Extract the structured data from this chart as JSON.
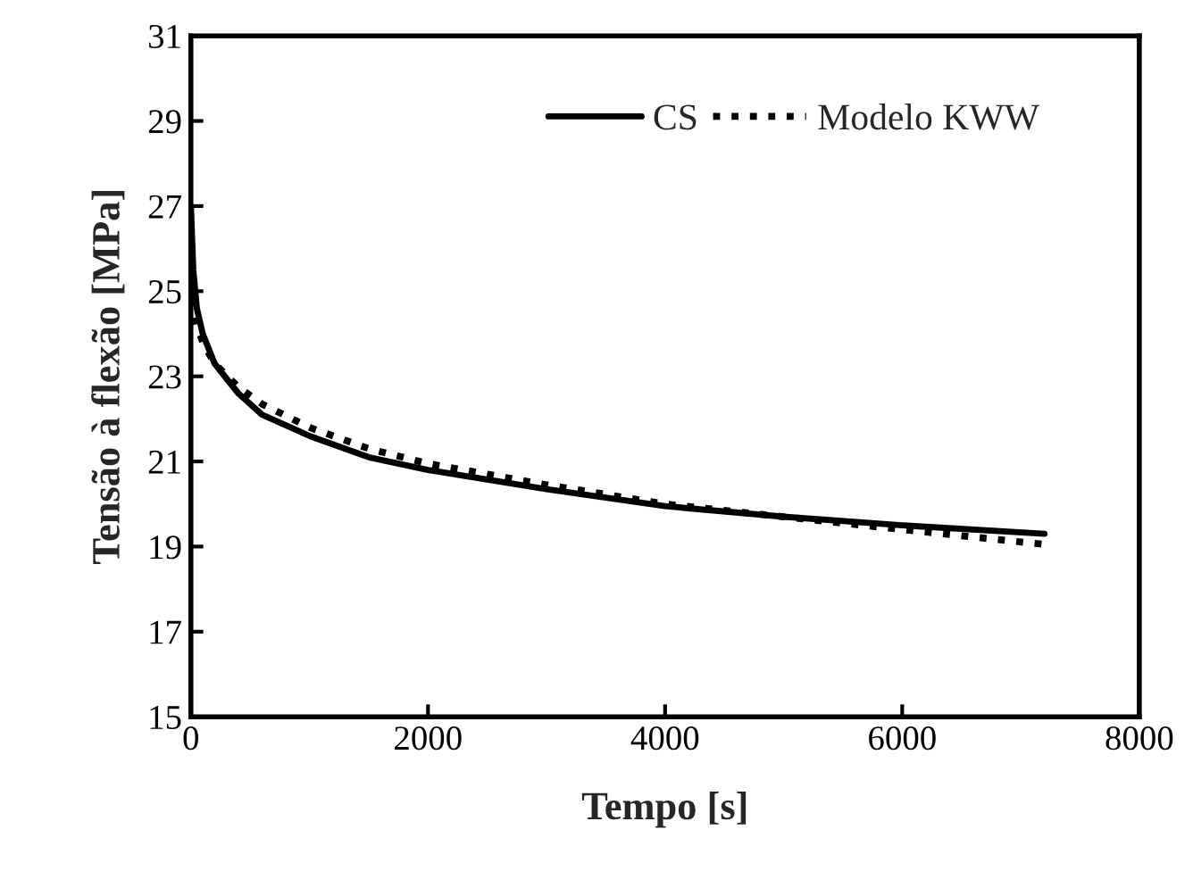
{
  "chart_data": {
    "type": "line",
    "xlabel": "Tempo [s]",
    "ylabel": "Tensão à flexão [MPa]",
    "xlim": [
      0,
      8000
    ],
    "xticks": [
      0,
      2000,
      4000,
      6000,
      8000
    ],
    "ylim": [
      15,
      31
    ],
    "yticks": [
      15,
      17,
      19,
      21,
      23,
      25,
      27,
      29,
      31
    ],
    "grid": false,
    "legend": "top right",
    "series": [
      {
        "name": "CS",
        "color": "#000000",
        "line_style": "solid",
        "x": [
          0,
          20,
          50,
          100,
          200,
          400,
          600,
          1000,
          1500,
          2000,
          3000,
          4000,
          5000,
          6000,
          7200
        ],
        "values": [
          27.0,
          25.5,
          24.6,
          24.0,
          23.3,
          22.6,
          22.1,
          21.6,
          21.1,
          20.8,
          20.35,
          19.95,
          19.7,
          19.5,
          19.3
        ]
      },
      {
        "name": "Modelo KWW",
        "color": "#000000",
        "line_style": "dotted",
        "x": [
          0,
          50,
          100,
          200,
          400,
          600,
          1000,
          1500,
          2000,
          3000,
          4000,
          5000,
          6000,
          7200
        ],
        "values": [
          24.8,
          24.2,
          23.8,
          23.3,
          22.75,
          22.35,
          21.8,
          21.3,
          20.95,
          20.45,
          20.0,
          19.7,
          19.4,
          19.05
        ]
      }
    ]
  }
}
